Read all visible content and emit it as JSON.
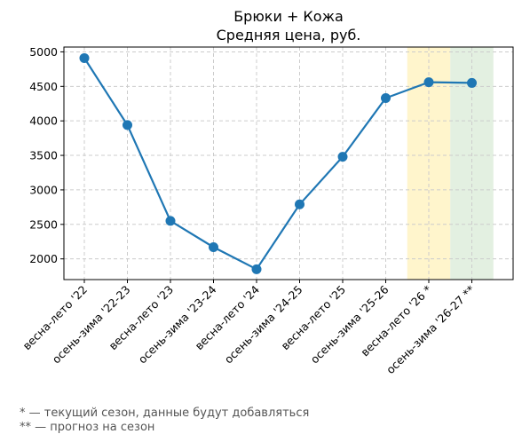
{
  "chart_data": {
    "type": "line",
    "title": "Брюки + Кожа",
    "subtitle": "Средняя цена, руб.",
    "categories": [
      "весна-лето '22",
      "осень-зима '22-23",
      "весна-лето '23",
      "осень-зима '23-24",
      "весна-лето '24",
      "осень-зима '24-25",
      "весна-лето '25",
      "осень-зима '25-26",
      "весна-лето '26 *",
      "осень-зима '26-27 **"
    ],
    "values": [
      4910,
      3940,
      2550,
      2170,
      1850,
      2790,
      3480,
      4330,
      4560,
      4550
    ],
    "ylim": [
      1700,
      5070
    ],
    "yticks": [
      "2000",
      "2500",
      "3000",
      "3500",
      "4000",
      "4500",
      "5000"
    ],
    "grid": true,
    "line_color": "#1f77b4",
    "highlights": [
      {
        "category": "весна-лето '26 *",
        "color": "#fff5cc"
      },
      {
        "category": "осень-зима '26-27 **",
        "color": "#e3f0e1"
      }
    ]
  },
  "notes": [
    "* — текущий сезон, данные будут добавляться",
    "** — прогноз на сезон"
  ]
}
